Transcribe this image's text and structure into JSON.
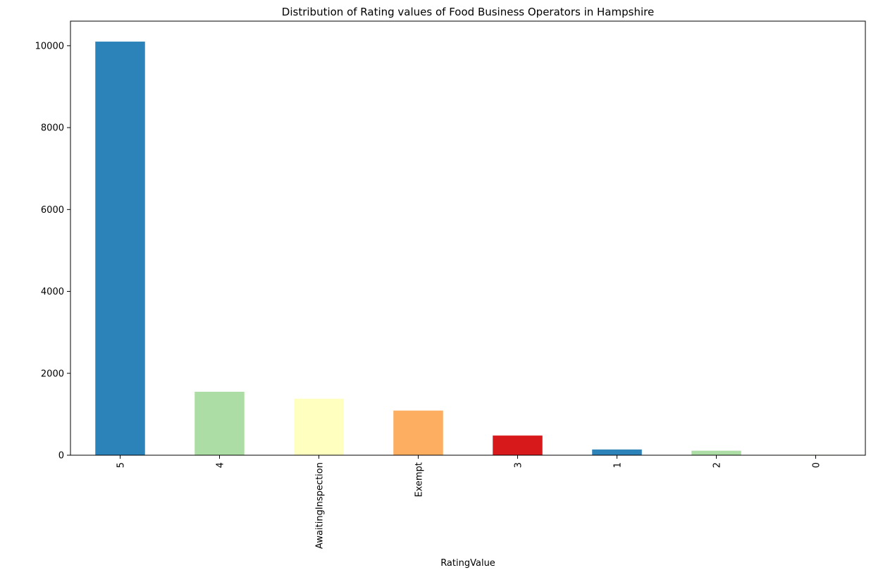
{
  "chart_data": {
    "type": "bar",
    "title": "Distribution of Rating values of Food Business Operators in Hampshire",
    "xlabel": "RatingValue",
    "ylabel": "",
    "categories": [
      "5",
      "4",
      "AwaitingInspection",
      "Exempt",
      "3",
      "1",
      "2",
      "0"
    ],
    "values": [
      10100,
      1550,
      1380,
      1090,
      480,
      140,
      110,
      10
    ],
    "bar_colors": [
      "#2b83ba",
      "#abdda4",
      "#ffffbf",
      "#fdae61",
      "#d7191c",
      "#2b83ba",
      "#abdda4",
      "#ffffbf"
    ],
    "ylim": [
      0,
      10600
    ],
    "yticks": [
      0,
      2000,
      4000,
      6000,
      8000,
      10000
    ],
    "ytick_labels": [
      "0",
      "2000",
      "4000",
      "6000",
      "8000",
      "10000"
    ],
    "grid": false,
    "legend": "none"
  }
}
